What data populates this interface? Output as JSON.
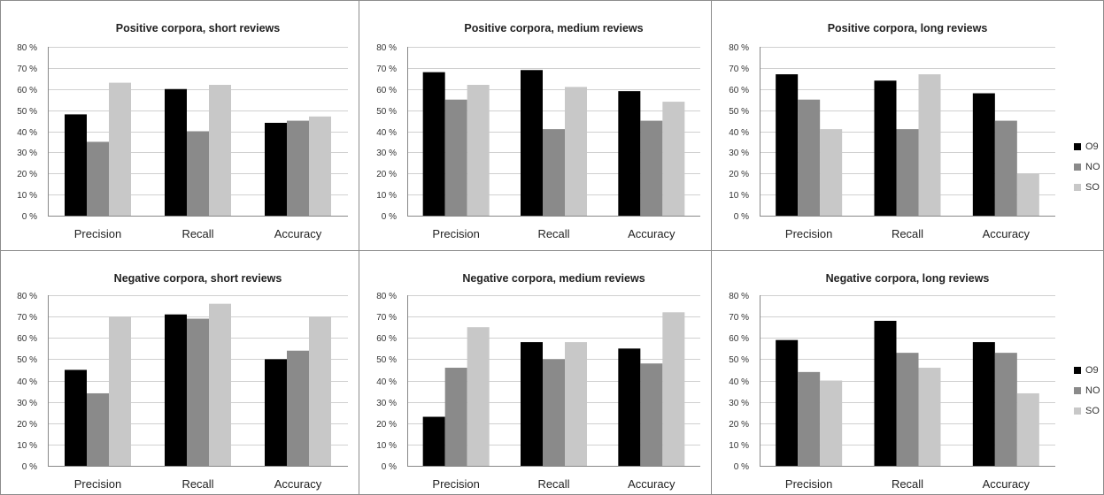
{
  "colors": {
    "O9": "#000000",
    "NO": "#8a8a8a",
    "SO": "#c8c8c8",
    "border": "#8c8c8c",
    "gridline": "#d0d0d0"
  },
  "legend": [
    {
      "label": "O9",
      "color": "#000000"
    },
    {
      "label": "NO",
      "color": "#8a8a8a"
    },
    {
      "label": "SO",
      "color": "#c8c8c8"
    }
  ],
  "chart_data": [
    {
      "type": "bar",
      "title": "Positive corpora, short reviews",
      "categories": [
        "Precision",
        "Recall",
        "Accuracy"
      ],
      "series": [
        {
          "name": "O9",
          "values": [
            48,
            60,
            44
          ]
        },
        {
          "name": "NO",
          "values": [
            35,
            40,
            45
          ]
        },
        {
          "name": "SO",
          "values": [
            63,
            62,
            47
          ]
        }
      ],
      "yticks": [
        "0 %",
        "10 %",
        "20 %",
        "30 %",
        "40 %",
        "50 %",
        "60 %",
        "70 %",
        "80 %"
      ],
      "ylim": [
        0,
        80
      ]
    },
    {
      "type": "bar",
      "title": "Positive corpora, medium reviews",
      "categories": [
        "Precision",
        "Recall",
        "Accuracy"
      ],
      "series": [
        {
          "name": "O9",
          "values": [
            68,
            69,
            59
          ]
        },
        {
          "name": "NO",
          "values": [
            55,
            41,
            45
          ]
        },
        {
          "name": "SO",
          "values": [
            62,
            61,
            54
          ]
        }
      ],
      "yticks": [
        "0 %",
        "10 %",
        "20 %",
        "30 %",
        "40 %",
        "50 %",
        "60 %",
        "70 %",
        "80 %"
      ],
      "ylim": [
        0,
        80
      ]
    },
    {
      "type": "bar",
      "title": "Positive corpora, long reviews",
      "categories": [
        "Precision",
        "Recall",
        "Accuracy"
      ],
      "series": [
        {
          "name": "O9",
          "values": [
            67,
            64,
            58
          ]
        },
        {
          "name": "NO",
          "values": [
            55,
            41,
            45
          ]
        },
        {
          "name": "SO",
          "values": [
            41,
            67,
            20
          ]
        }
      ],
      "yticks": [
        "0 %",
        "10 %",
        "20 %",
        "30 %",
        "40 %",
        "50 %",
        "60 %",
        "70 %",
        "80 %"
      ],
      "ylim": [
        0,
        80
      ]
    },
    {
      "type": "bar",
      "title": "Negative corpora, short reviews",
      "categories": [
        "Precision",
        "Recall",
        "Accuracy"
      ],
      "series": [
        {
          "name": "O9",
          "values": [
            45,
            71,
            50
          ]
        },
        {
          "name": "NO",
          "values": [
            34,
            69,
            54
          ]
        },
        {
          "name": "SO",
          "values": [
            70,
            76,
            70
          ]
        }
      ],
      "yticks": [
        "0 %",
        "10 %",
        "20 %",
        "30 %",
        "40 %",
        "50 %",
        "60 %",
        "70 %",
        "80 %"
      ],
      "ylim": [
        0,
        80
      ]
    },
    {
      "type": "bar",
      "title": "Negative corpora, medium reviews",
      "categories": [
        "Precision",
        "Recall",
        "Accuracy"
      ],
      "series": [
        {
          "name": "O9",
          "values": [
            23,
            58,
            55
          ]
        },
        {
          "name": "NO",
          "values": [
            46,
            50,
            48
          ]
        },
        {
          "name": "SO",
          "values": [
            65,
            58,
            72
          ]
        }
      ],
      "yticks": [
        "0 %",
        "10 %",
        "20 %",
        "30 %",
        "40 %",
        "50 %",
        "60 %",
        "70 %",
        "80 %"
      ],
      "ylim": [
        0,
        80
      ]
    },
    {
      "type": "bar",
      "title": "Negative corpora, long reviews",
      "categories": [
        "Precision",
        "Recall",
        "Accuracy"
      ],
      "series": [
        {
          "name": "O9",
          "values": [
            59,
            68,
            58
          ]
        },
        {
          "name": "NO",
          "values": [
            44,
            53,
            53
          ]
        },
        {
          "name": "SO",
          "values": [
            40,
            46,
            34
          ]
        }
      ],
      "yticks": [
        "0 %",
        "10 %",
        "20 %",
        "30 %",
        "40 %",
        "50 %",
        "60 %",
        "70 %",
        "80 %"
      ],
      "ylim": [
        0,
        80
      ]
    }
  ]
}
